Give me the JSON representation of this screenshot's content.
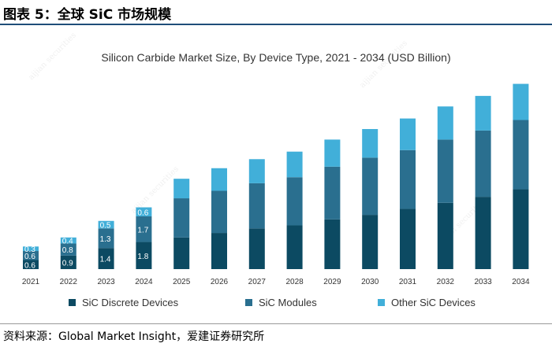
{
  "header": {
    "title": "图表 5：全球 SiC 市场规模"
  },
  "footer": {
    "source": "资料来源：Global Market Insight，爱建证券研究所"
  },
  "colors": {
    "discrete": "#0c4a62",
    "modules": "#2a6f8f",
    "other": "#41afd9",
    "label": "#ffffff",
    "text": "#333333",
    "rule": "#1f4e79"
  },
  "chart_data": {
    "type": "bar",
    "stacked": true,
    "title": "Silicon Carbide Market Size, By Device Type, 2021 - 2034 (USD Billion)",
    "xlabel": "",
    "ylabel": "",
    "categories": [
      "2021",
      "2022",
      "2023",
      "2024",
      "2025",
      "2026",
      "2027",
      "2028",
      "2029",
      "2030",
      "2031",
      "2032",
      "2033",
      "2034"
    ],
    "series": [
      {
        "name": "SiC Discrete Devices",
        "color_key": "discrete",
        "values": [
          0.6,
          0.9,
          1.4,
          1.8,
          2.1,
          2.4,
          2.7,
          2.9,
          3.3,
          3.6,
          4.0,
          4.4,
          4.8,
          5.3
        ]
      },
      {
        "name": "SiC Modules",
        "color_key": "modules",
        "values": [
          0.6,
          0.8,
          1.3,
          1.7,
          2.6,
          2.8,
          3.0,
          3.2,
          3.5,
          3.8,
          3.9,
          4.2,
          4.4,
          4.6
        ]
      },
      {
        "name": "Other SiC Devices",
        "color_key": "other",
        "values": [
          0.3,
          0.4,
          0.5,
          0.6,
          1.3,
          1.5,
          1.6,
          1.7,
          1.8,
          1.9,
          2.1,
          2.2,
          2.3,
          2.4
        ]
      }
    ],
    "data_labels": [
      [
        "0.6",
        "0.9",
        "1.4",
        "1.8",
        "",
        "",
        "",
        "",
        "",
        "",
        "",
        "",
        "",
        ""
      ],
      [
        "0.6",
        "0.8",
        "1.3",
        "1.7",
        "",
        "",
        "",
        "",
        "",
        "",
        "",
        "",
        "",
        ""
      ],
      [
        "0.3",
        "0.4",
        "0.5",
        "0.6",
        "",
        "",
        "",
        "",
        "",
        "",
        "",
        "",
        "",
        ""
      ]
    ],
    "ylim": [
      0,
      12.8
    ],
    "grid": false,
    "legend": {
      "position": "bottom",
      "items": [
        "SiC Discrete Devices",
        "SiC Modules",
        "Other SiC Devices"
      ]
    }
  }
}
